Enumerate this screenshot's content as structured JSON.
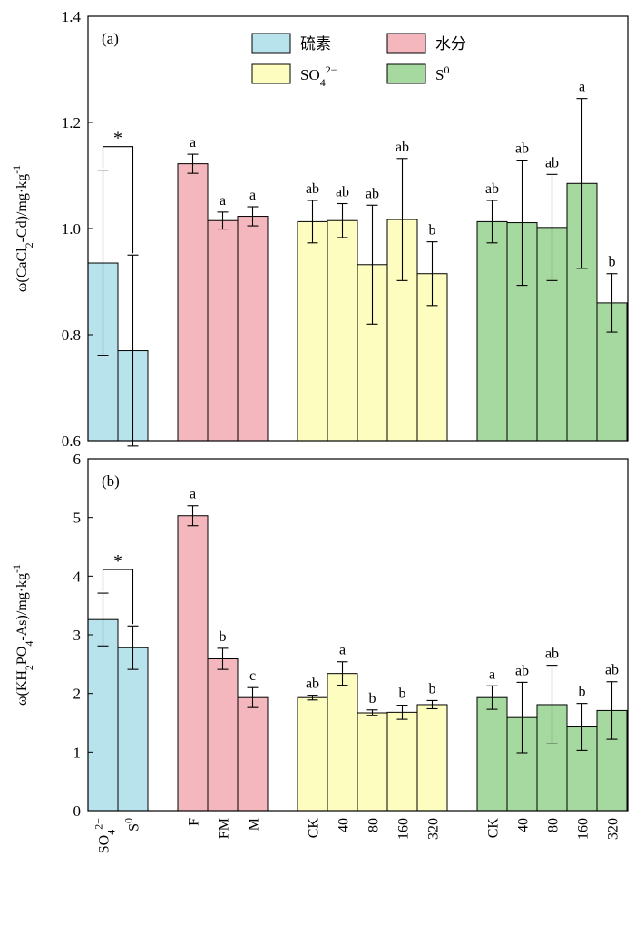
{
  "chart_data": [
    {
      "type": "bar",
      "panel_label": "(a)",
      "ylabel": "ω(CaCl2-Cd)/mg·kg-1",
      "ylabel_parts": {
        "pre": "ω(CaCl",
        "sub": "2",
        "mid": "-Cd)/mg·kg",
        "sup": "-1"
      },
      "ylim": [
        0.6,
        1.4
      ],
      "yticks": [
        "0.6",
        "0.8",
        "1.0",
        "1.2",
        "1.4"
      ],
      "groups": [
        {
          "name": "硫素",
          "color": "#b8e3ec",
          "categories": [
            "SO4 2−",
            "S0"
          ],
          "values": [
            0.935,
            0.77
          ],
          "errors": [
            0.175,
            0.18
          ],
          "letters": [
            "",
            ""
          ],
          "significance": "*"
        },
        {
          "name": "水分",
          "color": "#f4b7bd",
          "categories": [
            "F",
            "FM",
            "M"
          ],
          "values": [
            1.122,
            1.015,
            1.023
          ],
          "errors": [
            0.018,
            0.016,
            0.018
          ],
          "letters": [
            "a",
            "a",
            "a"
          ]
        },
        {
          "name": "SO42−",
          "color": "#fdfdc0",
          "categories": [
            "CK",
            "40",
            "80",
            "160",
            "320"
          ],
          "values": [
            1.013,
            1.015,
            0.932,
            1.017,
            0.915
          ],
          "errors": [
            0.04,
            0.032,
            0.112,
            0.115,
            0.06
          ],
          "letters": [
            "ab",
            "ab",
            "ab",
            "ab",
            "b"
          ]
        },
        {
          "name": "S0",
          "color": "#a6d9a0",
          "categories": [
            "CK",
            "40",
            "80",
            "160",
            "320"
          ],
          "values": [
            1.013,
            1.011,
            1.002,
            1.085,
            0.86
          ],
          "errors": [
            0.04,
            0.118,
            0.1,
            0.16,
            0.055
          ],
          "letters": [
            "ab",
            "ab",
            "ab",
            "a",
            "b"
          ]
        }
      ]
    },
    {
      "type": "bar",
      "panel_label": "(b)",
      "ylabel": "ω(KH2PO4-As)/mg·kg-1",
      "ylabel_parts": {
        "pre": "ω(KH",
        "sub": "2",
        "mid": "PO",
        "sub2": "4",
        "mid2": "-As)/mg·kg",
        "sup": "-1"
      },
      "ylim": [
        0,
        6
      ],
      "yticks": [
        "0",
        "1",
        "2",
        "3",
        "4",
        "5",
        "6"
      ],
      "groups": [
        {
          "name": "硫素",
          "color": "#b8e3ec",
          "categories": [
            "SO4 2−",
            "S0"
          ],
          "values": [
            3.26,
            2.78
          ],
          "errors": [
            0.45,
            0.37
          ],
          "letters": [
            "",
            ""
          ],
          "significance": "*"
        },
        {
          "name": "水分",
          "color": "#f4b7bd",
          "categories": [
            "F",
            "FM",
            "M"
          ],
          "values": [
            5.03,
            2.59,
            1.93
          ],
          "errors": [
            0.17,
            0.18,
            0.17
          ],
          "letters": [
            "a",
            "b",
            "c"
          ]
        },
        {
          "name": "SO42−",
          "color": "#fdfdc0",
          "categories": [
            "CK",
            "40",
            "80",
            "160",
            "320"
          ],
          "values": [
            1.93,
            2.34,
            1.67,
            1.68,
            1.81
          ],
          "errors": [
            0.04,
            0.2,
            0.05,
            0.12,
            0.07
          ],
          "letters": [
            "ab",
            "a",
            "b",
            "b",
            "b"
          ]
        },
        {
          "name": "S0",
          "color": "#a6d9a0",
          "categories": [
            "CK",
            "40",
            "80",
            "160",
            "320"
          ],
          "values": [
            1.93,
            1.59,
            1.81,
            1.43,
            1.71
          ],
          "errors": [
            0.2,
            0.6,
            0.67,
            0.4,
            0.49
          ],
          "letters": [
            "a",
            "ab",
            "ab",
            "b",
            "ab"
          ]
        }
      ]
    }
  ],
  "legend": {
    "items": [
      {
        "label": "硫素",
        "color": "#b8e3ec"
      },
      {
        "label": "水分",
        "color": "#f4b7bd"
      },
      {
        "label": "SO4 2−",
        "base": "SO",
        "sub": "4",
        "sup": "2−",
        "color": "#fdfdc0"
      },
      {
        "label": "S0",
        "base": "S",
        "sup": "0",
        "color": "#a6d9a0"
      }
    ],
    "placement": "top-center, panel (a)"
  },
  "x_category_labels": [
    {
      "label": "SO42−",
      "base": "SO",
      "sub": "4",
      "sup": "2−"
    },
    {
      "label": "S0",
      "base": "S",
      "sup": "0"
    },
    {
      "label": "F"
    },
    {
      "label": "FM"
    },
    {
      "label": "M"
    },
    {
      "label": "CK"
    },
    {
      "label": "40"
    },
    {
      "label": "80"
    },
    {
      "label": "160"
    },
    {
      "label": "320"
    },
    {
      "label": "CK"
    },
    {
      "label": "40"
    },
    {
      "label": "80"
    },
    {
      "label": "160"
    },
    {
      "label": "320"
    }
  ]
}
